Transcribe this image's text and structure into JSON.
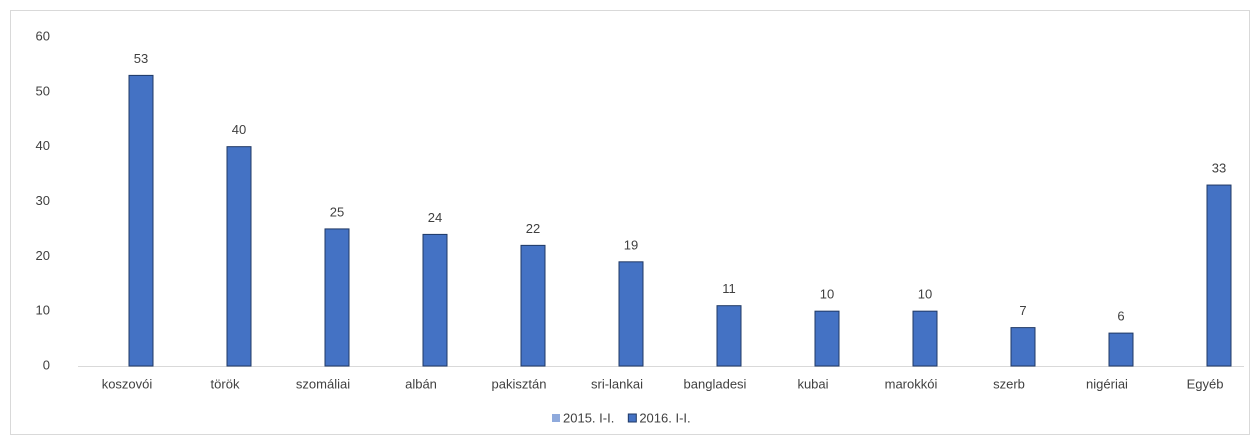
{
  "chart_data": {
    "type": "bar",
    "categories": [
      "koszovói",
      "török",
      "szomáliai",
      "albán",
      "pakisztán",
      "sri-lankai",
      "bangladesi",
      "kubai",
      "marokkói",
      "szerb",
      "nigériai",
      "Egyéb"
    ],
    "series": [
      {
        "name": "2015. I-I.",
        "color": "#8faadc",
        "values": [
          null,
          null,
          null,
          null,
          null,
          null,
          null,
          null,
          null,
          null,
          null,
          null
        ]
      },
      {
        "name": "2016. I-I.",
        "color": "#4472c4",
        "values": [
          53,
          40,
          25,
          24,
          22,
          19,
          11,
          10,
          10,
          7,
          6,
          33
        ]
      }
    ],
    "ylim": [
      0,
      60
    ],
    "yticks": [
      0,
      10,
      20,
      30,
      40,
      50,
      60
    ],
    "grid": false,
    "legend": "bottom"
  }
}
